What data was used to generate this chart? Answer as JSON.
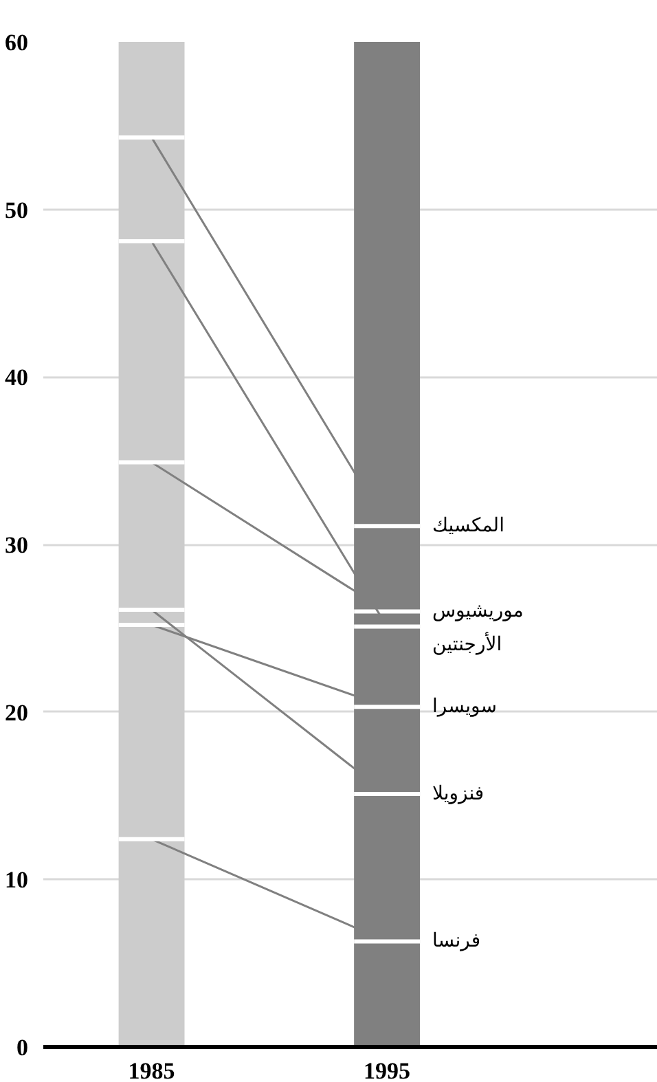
{
  "chart_data": {
    "type": "line",
    "x": [
      1985,
      1995
    ],
    "xlim": [
      1980.4,
      2006.5
    ],
    "xticks": [
      1985,
      1995
    ],
    "ylim": [
      0,
      60
    ],
    "yticks": [
      0,
      10,
      20,
      30,
      40,
      50,
      60
    ],
    "grid": "y",
    "bands": [
      {
        "axis": "x",
        "from": 1983.6,
        "to": 1986.4,
        "color": "#cccccc"
      },
      {
        "axis": "x",
        "from": 1993.6,
        "to": 1996.4,
        "color": "#808080"
      }
    ],
    "series": [
      {
        "name": "المكسيك",
        "color": "#808080",
        "values": [
          54.3,
          31.1
        ],
        "xerrors": [
          1.4,
          1.4
        ]
      },
      {
        "name": "موريشيوس",
        "color": "#808080",
        "values": [
          34.9,
          26.0
        ],
        "xerrors": [
          1.4,
          1.4
        ]
      },
      {
        "name": "الأرجنتين",
        "color": "#808080",
        "values": [
          48.1,
          25.1
        ],
        "xerrors": [
          1.4,
          1.4
        ]
      },
      {
        "name": "سويسرا",
        "color": "#808080",
        "values": [
          25.2,
          20.3
        ],
        "xerrors": [
          1.4,
          1.4
        ]
      },
      {
        "name": "فنزويلا",
        "color": "#808080",
        "values": [
          26.1,
          15.1
        ],
        "xerrors": [
          1.4,
          1.4
        ]
      },
      {
        "name": "فرنسا",
        "color": "#808080",
        "values": [
          12.4,
          6.3
        ],
        "xerrors": [
          1.4,
          1.4
        ]
      }
    ]
  }
}
